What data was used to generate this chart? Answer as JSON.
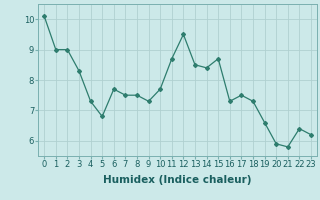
{
  "x": [
    0,
    1,
    2,
    3,
    4,
    5,
    6,
    7,
    8,
    9,
    10,
    11,
    12,
    13,
    14,
    15,
    16,
    17,
    18,
    19,
    20,
    21,
    22,
    23
  ],
  "y": [
    10.1,
    9.0,
    9.0,
    8.3,
    7.3,
    6.8,
    7.7,
    7.5,
    7.5,
    7.3,
    7.7,
    8.7,
    9.5,
    8.5,
    8.4,
    8.7,
    7.3,
    7.5,
    7.3,
    6.6,
    5.9,
    5.8,
    6.4,
    6.2
  ],
  "line_color": "#2e7d6e",
  "marker": "D",
  "marker_size": 2.0,
  "bg_color": "#cce9e9",
  "grid_color": "#b0d0d0",
  "xlabel": "Humidex (Indice chaleur)",
  "xlim": [
    -0.5,
    23.5
  ],
  "ylim": [
    5.5,
    10.5
  ],
  "yticks": [
    6,
    7,
    8,
    9,
    10
  ],
  "xticks": [
    0,
    1,
    2,
    3,
    4,
    5,
    6,
    7,
    8,
    9,
    10,
    11,
    12,
    13,
    14,
    15,
    16,
    17,
    18,
    19,
    20,
    21,
    22,
    23
  ],
  "xtick_labels": [
    "0",
    "1",
    "2",
    "3",
    "4",
    "5",
    "6",
    "7",
    "8",
    "9",
    "10",
    "11",
    "12",
    "13",
    "14",
    "15",
    "16",
    "17",
    "18",
    "19",
    "20",
    "21",
    "22",
    "23"
  ],
  "xlabel_fontsize": 7.5,
  "tick_fontsize": 6.0
}
